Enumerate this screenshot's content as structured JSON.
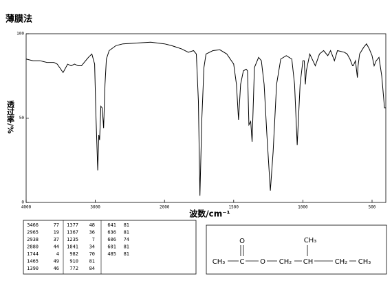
{
  "chart_data": {
    "type": "line",
    "title": "薄膜法",
    "y_label": "透过率/%",
    "x_label": "波数/cm⁻¹",
    "x": [
      4000,
      3900,
      3800,
      3700,
      3600,
      3550,
      3466,
      3400,
      3350,
      3300,
      3250,
      3200,
      3100,
      3050,
      3010,
      2990,
      2965,
      2950,
      2938,
      2920,
      2900,
      2880,
      2860,
      2840,
      2800,
      2700,
      2600,
      2400,
      2200,
      2000,
      1950,
      1876,
      1828,
      1790,
      1770,
      1755,
      1744,
      1730,
      1715,
      1700,
      1650,
      1600,
      1550,
      1500,
      1480,
      1465,
      1450,
      1430,
      1410,
      1400,
      1390,
      1377,
      1367,
      1350,
      1320,
      1300,
      1280,
      1260,
      1235,
      1215,
      1190,
      1160,
      1120,
      1080,
      1060,
      1041,
      1020,
      1000,
      990,
      982,
      975,
      950,
      910,
      880,
      850,
      820,
      800,
      772,
      750,
      700,
      680,
      660,
      641,
      636,
      620,
      606,
      601,
      590,
      560,
      540,
      520,
      500,
      485,
      470,
      450,
      430,
      410,
      400
    ],
    "series": [
      {
        "color": "#000000",
        "values": [
          85,
          84,
          84,
          83,
          83,
          82,
          77,
          82,
          81,
          82,
          81,
          81,
          86,
          88,
          82,
          50,
          19,
          40,
          37,
          57,
          56,
          44,
          70,
          85,
          90,
          93,
          94,
          94.5,
          95,
          94,
          93,
          91,
          89,
          90,
          88,
          60,
          4,
          50,
          80,
          88,
          90,
          90.5,
          88,
          82,
          70,
          49,
          70,
          78,
          79,
          78,
          46,
          48,
          36,
          80,
          86,
          84,
          70,
          40,
          7,
          30,
          70,
          85,
          87,
          85,
          70,
          34,
          70,
          84,
          84,
          70,
          78,
          88,
          81,
          88,
          90,
          87,
          90,
          84,
          90,
          89,
          88,
          85,
          81,
          81,
          84,
          74,
          81,
          88,
          92,
          94,
          91,
          87,
          81,
          84,
          86,
          75,
          56,
          56
        ]
      }
    ],
    "xlim": [
      4000,
      400
    ],
    "ylim": [
      0,
      100
    ],
    "xticks": [
      4000,
      3000,
      2000,
      1500,
      1000,
      500
    ],
    "yticks": [
      0,
      50,
      100
    ]
  },
  "peak_table": {
    "columns": [
      [
        [
          3466,
          77
        ],
        [
          2965,
          19
        ],
        [
          2938,
          37
        ],
        [
          2880,
          44
        ],
        [
          1744,
          4
        ],
        [
          1465,
          49
        ],
        [
          1390,
          46
        ]
      ],
      [
        [
          1377,
          48
        ],
        [
          1367,
          36
        ],
        [
          1235,
          7
        ],
        [
          1041,
          34
        ],
        [
          982,
          70
        ],
        [
          910,
          81
        ],
        [
          772,
          84
        ]
      ],
      [
        [
          641,
          81
        ],
        [
          636,
          81
        ],
        [
          606,
          74
        ],
        [
          601,
          81
        ],
        [
          485,
          81
        ]
      ]
    ]
  },
  "structure": {
    "atoms": [
      "CH₃",
      "C",
      "O",
      "CH₂",
      "CH",
      "CH₂",
      "CH₃",
      "O",
      "CH₃"
    ]
  }
}
